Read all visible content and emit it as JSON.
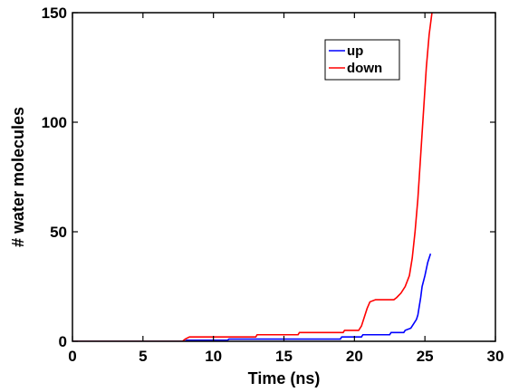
{
  "chart_data": {
    "type": "line",
    "title": "",
    "xlabel": "Time (ns)",
    "ylabel": "# water molecules",
    "xlim": [
      0,
      30
    ],
    "ylim": [
      0,
      150
    ],
    "xticks": [
      0,
      5,
      10,
      15,
      20,
      25,
      30
    ],
    "yticks": [
      0,
      50,
      100,
      150
    ],
    "grid": false,
    "legend_position": "top-right",
    "series": [
      {
        "name": "up",
        "color": "#0000ff",
        "points": [
          [
            0,
            0
          ],
          [
            8,
            0
          ],
          [
            8.1,
            0.5
          ],
          [
            11,
            0.5
          ],
          [
            11.1,
            1
          ],
          [
            19,
            1
          ],
          [
            19.1,
            2
          ],
          [
            20.5,
            2
          ],
          [
            20.6,
            3
          ],
          [
            22.5,
            3
          ],
          [
            22.6,
            4
          ],
          [
            23.5,
            4
          ],
          [
            23.6,
            5
          ],
          [
            24.0,
            6
          ],
          [
            24.2,
            8
          ],
          [
            24.4,
            10
          ],
          [
            24.5,
            12
          ],
          [
            24.6,
            16
          ],
          [
            24.7,
            20
          ],
          [
            24.8,
            25
          ],
          [
            25.0,
            30
          ],
          [
            25.1,
            33
          ],
          [
            25.2,
            36
          ],
          [
            25.3,
            38
          ],
          [
            25.4,
            40
          ]
        ]
      },
      {
        "name": "down",
        "color": "#ff0000",
        "points": [
          [
            0,
            0
          ],
          [
            7.8,
            0
          ],
          [
            8.0,
            1
          ],
          [
            8.3,
            2
          ],
          [
            13,
            2
          ],
          [
            13.1,
            3
          ],
          [
            16,
            3
          ],
          [
            16.1,
            4
          ],
          [
            19.2,
            4
          ],
          [
            19.3,
            5
          ],
          [
            20.3,
            5
          ],
          [
            20.5,
            7
          ],
          [
            20.7,
            11
          ],
          [
            20.9,
            15
          ],
          [
            21.1,
            18
          ],
          [
            21.5,
            19
          ],
          [
            22.8,
            19
          ],
          [
            23.0,
            20
          ],
          [
            23.3,
            22
          ],
          [
            23.6,
            25
          ],
          [
            23.9,
            30
          ],
          [
            24.1,
            38
          ],
          [
            24.3,
            50
          ],
          [
            24.5,
            65
          ],
          [
            24.7,
            85
          ],
          [
            24.9,
            105
          ],
          [
            25.1,
            125
          ],
          [
            25.3,
            140
          ],
          [
            25.5,
            150
          ]
        ]
      }
    ]
  }
}
